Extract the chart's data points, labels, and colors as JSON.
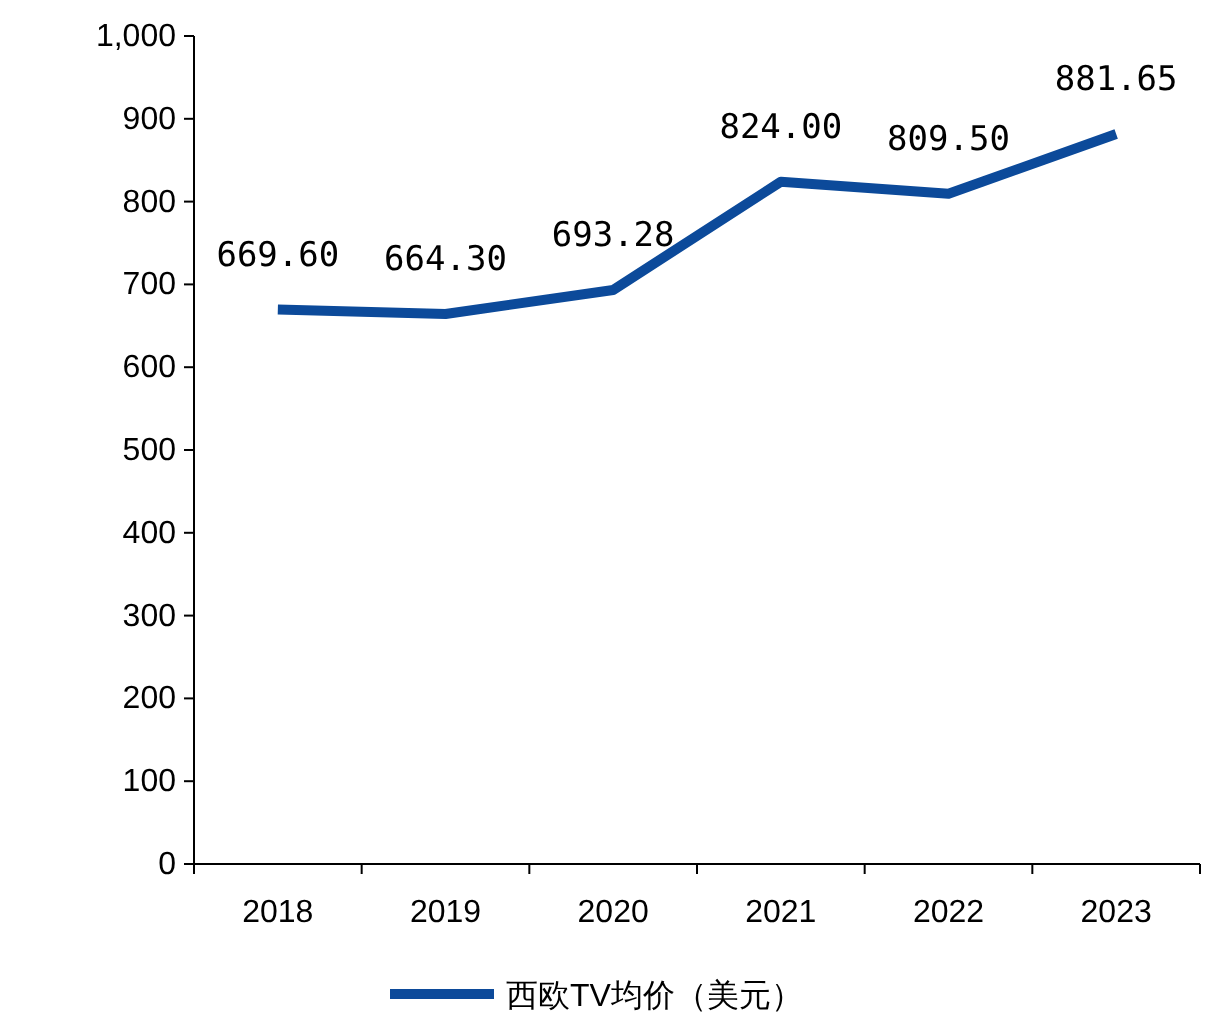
{
  "chart_data": {
    "type": "line",
    "categories": [
      "2018",
      "2019",
      "2020",
      "2021",
      "2022",
      "2023"
    ],
    "series": [
      {
        "name": "西欧TV均价（美元）",
        "color": "#0c4a9a",
        "values": [
          669.6,
          664.3,
          693.28,
          824.0,
          809.5,
          881.65
        ],
        "value_labels": [
          "669.60",
          "664.30",
          "693.28",
          "824.00",
          "809.50",
          "881.65"
        ]
      }
    ],
    "ylim": [
      0,
      1000
    ],
    "yticks": [
      0,
      100,
      200,
      300,
      400,
      500,
      600,
      700,
      800,
      900,
      {
        "value": 1000,
        "label": "1,000"
      }
    ],
    "legend": "bottom",
    "grid": false,
    "marker": "none",
    "line_style": "solid"
  }
}
